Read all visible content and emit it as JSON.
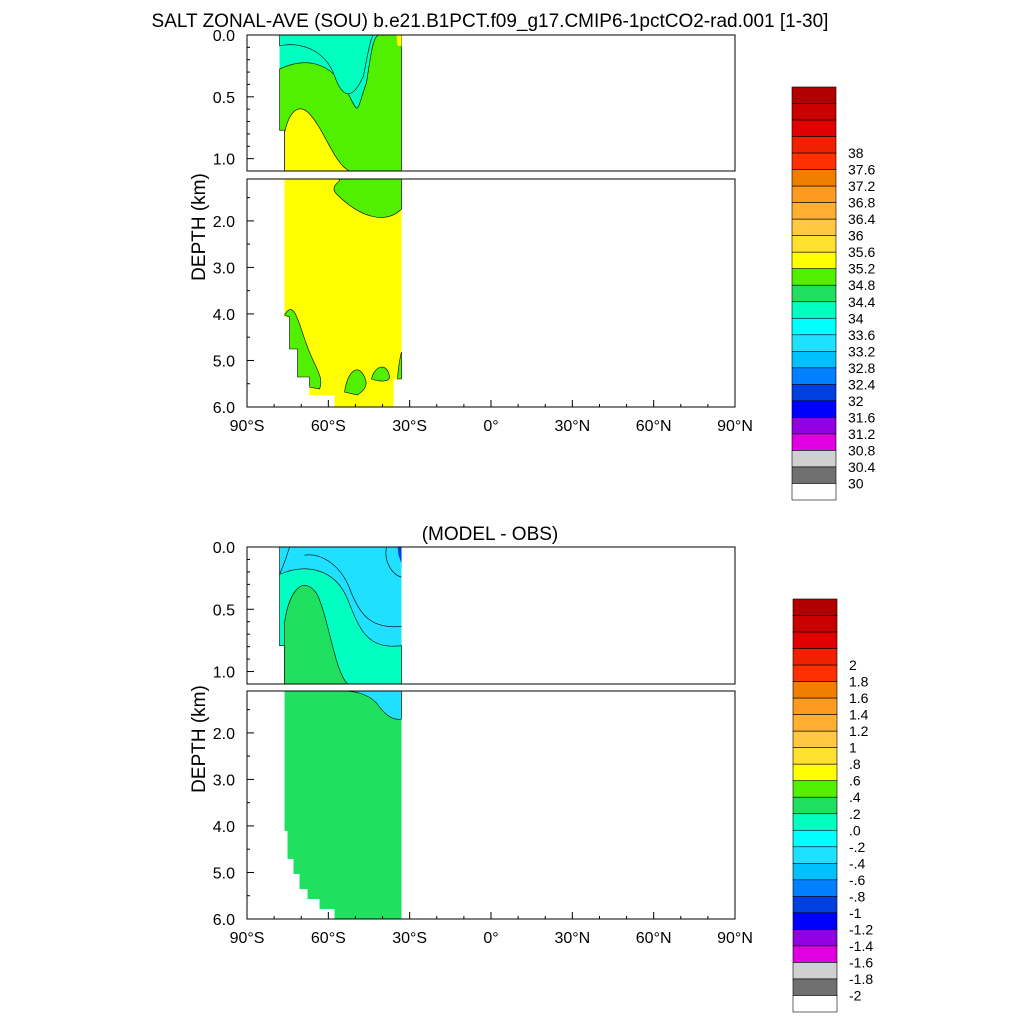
{
  "title": "SALT ZONAL-AVE (SOU) b.e21.B1PCT.f09_g17.CMIP6-1pctCO2-rad.001 [1-30]",
  "chart_data": [
    {
      "type": "heatmap",
      "name": "salinity",
      "title": "",
      "ylabel": "DEPTH (km)",
      "xlabel": "",
      "x_tick_labels": [
        "90°S",
        "60°S",
        "30°S",
        "0°",
        "30°N",
        "60°N",
        "90°N"
      ],
      "x_tick_values": [
        -90,
        -60,
        -30,
        0,
        30,
        60,
        90
      ],
      "y_tick_labels_top": [
        "0.0",
        "0.5",
        "1.0"
      ],
      "y_tick_labels_bottom": [
        "2.0",
        "3.0",
        "4.0",
        "5.0",
        "6.0"
      ],
      "xlim": [
        -90,
        90
      ],
      "ylim_top_km": [
        0,
        1.1
      ],
      "ylim_bottom_km": [
        1.1,
        6.0
      ],
      "data_lat_range": [
        -78,
        -33
      ],
      "colorbar_labels": [
        "38",
        "37.6",
        "37.2",
        "36.8",
        "36.4",
        "36",
        "35.6",
        "35.2",
        "34.8",
        "34.4",
        "34",
        "33.6",
        "33.2",
        "32.8",
        "32.4",
        "32",
        "31.6",
        "31.2",
        "30.8",
        "30.4",
        "30"
      ],
      "colorbar_colors": [
        "#b00000",
        "#c80000",
        "#e00000",
        "#f02000",
        "#ff3000",
        "#f07f00",
        "#ff9a20",
        "#ffb030",
        "#ffc840",
        "#ffe030",
        "#ffff00",
        "#50f000",
        "#20e060",
        "#00ffc0",
        "#00ffff",
        "#20e0ff",
        "#00c0ff",
        "#0080ff",
        "#0040e0",
        "#0000ff",
        "#9000e0",
        "#e000e0",
        "#d0d0d0",
        "#707070",
        "#ffffff"
      ],
      "regions": [
        {
          "label": "34.8",
          "color": "#ffff00"
        },
        {
          "label": "34.4",
          "color": "#50f000"
        },
        {
          "label": "34",
          "color": "#00ffc0"
        },
        {
          "label": "33.6",
          "color": "#20ffe0"
        }
      ]
    },
    {
      "type": "heatmap",
      "name": "model-minus-obs",
      "title": "(MODEL - OBS)",
      "ylabel": "DEPTH (km)",
      "xlabel": "",
      "x_tick_labels": [
        "90°S",
        "60°S",
        "30°S",
        "0°",
        "30°N",
        "60°N",
        "90°N"
      ],
      "x_tick_values": [
        -90,
        -60,
        -30,
        0,
        30,
        60,
        90
      ],
      "y_tick_labels_top": [
        "0.0",
        "0.5",
        "1.0"
      ],
      "y_tick_labels_bottom": [
        "2.0",
        "3.0",
        "4.0",
        "5.0",
        "6.0"
      ],
      "xlim": [
        -90,
        90
      ],
      "ylim_top_km": [
        0,
        1.1
      ],
      "ylim_bottom_km": [
        1.1,
        6.0
      ],
      "data_lat_range": [
        -78,
        -33
      ],
      "colorbar_labels": [
        "2",
        "1.8",
        "1.6",
        "1.4",
        "1.2",
        "1",
        ".8",
        ".6",
        ".4",
        ".2",
        ".0",
        "-.2",
        "-.4",
        "-.6",
        "-.8",
        "-1",
        "-1.2",
        "-1.4",
        "-1.6",
        "-1.8",
        "-2"
      ],
      "colorbar_colors": [
        "#b00000",
        "#c80000",
        "#e00000",
        "#f02000",
        "#ff3000",
        "#f07f00",
        "#ff9a20",
        "#ffb030",
        "#ffc840",
        "#ffe030",
        "#ffff00",
        "#50f000",
        "#20e060",
        "#00ffc0",
        "#00ffff",
        "#20e0ff",
        "#00c0ff",
        "#0080ff",
        "#0040e0",
        "#0000ff",
        "#9000e0",
        "#e000e0",
        "#d0d0d0",
        "#707070",
        "#ffffff"
      ],
      "regions": [
        {
          "label": ".0",
          "color": "#20e060"
        },
        {
          "label": "-.2",
          "color": "#00ffc0"
        },
        {
          "label": "-.4",
          "color": "#20e0ff"
        },
        {
          "label": "-1",
          "color": "#0040e0"
        }
      ]
    }
  ]
}
